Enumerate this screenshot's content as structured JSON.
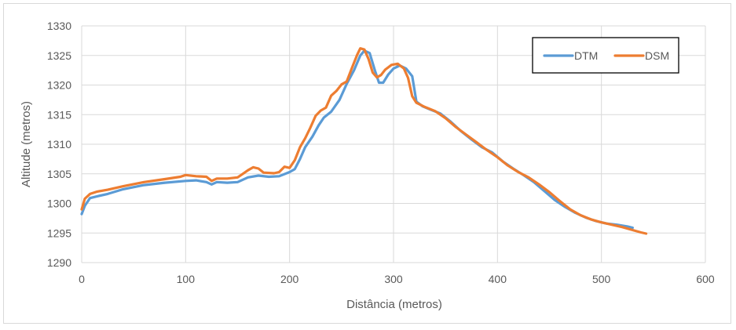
{
  "chart_data": {
    "type": "line",
    "xlabel": "Distância (metros)",
    "ylabel": "Altitude (metros)",
    "xlim": [
      0,
      600
    ],
    "ylim": [
      1290,
      1330
    ],
    "x_ticks": [
      0,
      100,
      200,
      300,
      400,
      500,
      600
    ],
    "y_ticks": [
      1290,
      1295,
      1300,
      1305,
      1310,
      1315,
      1320,
      1325,
      1330
    ],
    "grid": true,
    "legend_position": "top-right",
    "series": [
      {
        "name": "DTM",
        "color": "#5b9bd5",
        "points": [
          [
            0,
            1298.2
          ],
          [
            3,
            1299.6
          ],
          [
            8,
            1300.9
          ],
          [
            15,
            1301.2
          ],
          [
            25,
            1301.6
          ],
          [
            40,
            1302.4
          ],
          [
            60,
            1303.1
          ],
          [
            80,
            1303.5
          ],
          [
            100,
            1303.8
          ],
          [
            110,
            1303.9
          ],
          [
            120,
            1303.6
          ],
          [
            125,
            1303.2
          ],
          [
            130,
            1303.6
          ],
          [
            140,
            1303.5
          ],
          [
            150,
            1303.6
          ],
          [
            160,
            1304.4
          ],
          [
            170,
            1304.7
          ],
          [
            180,
            1304.5
          ],
          [
            190,
            1304.6
          ],
          [
            200,
            1305.3
          ],
          [
            205,
            1305.8
          ],
          [
            210,
            1307.5
          ],
          [
            215,
            1309.5
          ],
          [
            222,
            1311.3
          ],
          [
            228,
            1313.2
          ],
          [
            233,
            1314.5
          ],
          [
            240,
            1315.5
          ],
          [
            248,
            1317.5
          ],
          [
            255,
            1320.2
          ],
          [
            262,
            1322.5
          ],
          [
            268,
            1325.0
          ],
          [
            272,
            1325.8
          ],
          [
            277,
            1325.4
          ],
          [
            282,
            1322.5
          ],
          [
            286,
            1320.4
          ],
          [
            290,
            1320.4
          ],
          [
            295,
            1321.8
          ],
          [
            300,
            1322.8
          ],
          [
            306,
            1323.3
          ],
          [
            312,
            1322.8
          ],
          [
            318,
            1321.5
          ],
          [
            322,
            1317.2
          ],
          [
            328,
            1316.4
          ],
          [
            335,
            1315.9
          ],
          [
            345,
            1315.2
          ],
          [
            355,
            1313.8
          ],
          [
            365,
            1312.2
          ],
          [
            375,
            1310.8
          ],
          [
            385,
            1309.5
          ],
          [
            395,
            1308.6
          ],
          [
            405,
            1307.1
          ],
          [
            415,
            1305.9
          ],
          [
            425,
            1304.8
          ],
          [
            435,
            1303.6
          ],
          [
            445,
            1302.1
          ],
          [
            455,
            1300.6
          ],
          [
            465,
            1299.4
          ],
          [
            475,
            1298.4
          ],
          [
            485,
            1297.6
          ],
          [
            495,
            1297.0
          ],
          [
            505,
            1296.6
          ],
          [
            515,
            1296.4
          ],
          [
            525,
            1296.1
          ],
          [
            530,
            1295.9
          ]
        ]
      },
      {
        "name": "DSM",
        "color": "#ed7d31",
        "points": [
          [
            0,
            1299.0
          ],
          [
            3,
            1300.8
          ],
          [
            8,
            1301.6
          ],
          [
            15,
            1302.0
          ],
          [
            25,
            1302.3
          ],
          [
            40,
            1302.9
          ],
          [
            60,
            1303.6
          ],
          [
            80,
            1304.1
          ],
          [
            95,
            1304.5
          ],
          [
            100,
            1304.8
          ],
          [
            110,
            1304.6
          ],
          [
            120,
            1304.5
          ],
          [
            125,
            1303.8
          ],
          [
            130,
            1304.2
          ],
          [
            140,
            1304.2
          ],
          [
            150,
            1304.4
          ],
          [
            155,
            1305.0
          ],
          [
            160,
            1305.6
          ],
          [
            165,
            1306.1
          ],
          [
            170,
            1305.9
          ],
          [
            175,
            1305.2
          ],
          [
            185,
            1305.1
          ],
          [
            190,
            1305.3
          ],
          [
            195,
            1306.2
          ],
          [
            200,
            1306.0
          ],
          [
            205,
            1307.3
          ],
          [
            210,
            1309.5
          ],
          [
            215,
            1311.0
          ],
          [
            220,
            1312.8
          ],
          [
            225,
            1314.8
          ],
          [
            230,
            1315.7
          ],
          [
            235,
            1316.2
          ],
          [
            240,
            1318.2
          ],
          [
            245,
            1319.0
          ],
          [
            250,
            1320.1
          ],
          [
            255,
            1320.6
          ],
          [
            260,
            1322.9
          ],
          [
            265,
            1325.1
          ],
          [
            268,
            1326.2
          ],
          [
            272,
            1326.0
          ],
          [
            276,
            1324.4
          ],
          [
            280,
            1322.1
          ],
          [
            284,
            1321.3
          ],
          [
            288,
            1321.7
          ],
          [
            292,
            1322.6
          ],
          [
            298,
            1323.4
          ],
          [
            304,
            1323.6
          ],
          [
            310,
            1322.8
          ],
          [
            314,
            1321.2
          ],
          [
            318,
            1318.1
          ],
          [
            322,
            1317.0
          ],
          [
            330,
            1316.3
          ],
          [
            340,
            1315.6
          ],
          [
            350,
            1314.4
          ],
          [
            360,
            1312.9
          ],
          [
            370,
            1311.6
          ],
          [
            380,
            1310.3
          ],
          [
            390,
            1309.0
          ],
          [
            400,
            1307.8
          ],
          [
            410,
            1306.4
          ],
          [
            420,
            1305.3
          ],
          [
            430,
            1304.4
          ],
          [
            440,
            1303.2
          ],
          [
            450,
            1301.9
          ],
          [
            460,
            1300.4
          ],
          [
            470,
            1299.0
          ],
          [
            480,
            1298.0
          ],
          [
            490,
            1297.3
          ],
          [
            500,
            1296.8
          ],
          [
            510,
            1296.4
          ],
          [
            520,
            1296.0
          ],
          [
            530,
            1295.5
          ],
          [
            538,
            1295.1
          ],
          [
            543,
            1294.9
          ]
        ]
      }
    ]
  }
}
